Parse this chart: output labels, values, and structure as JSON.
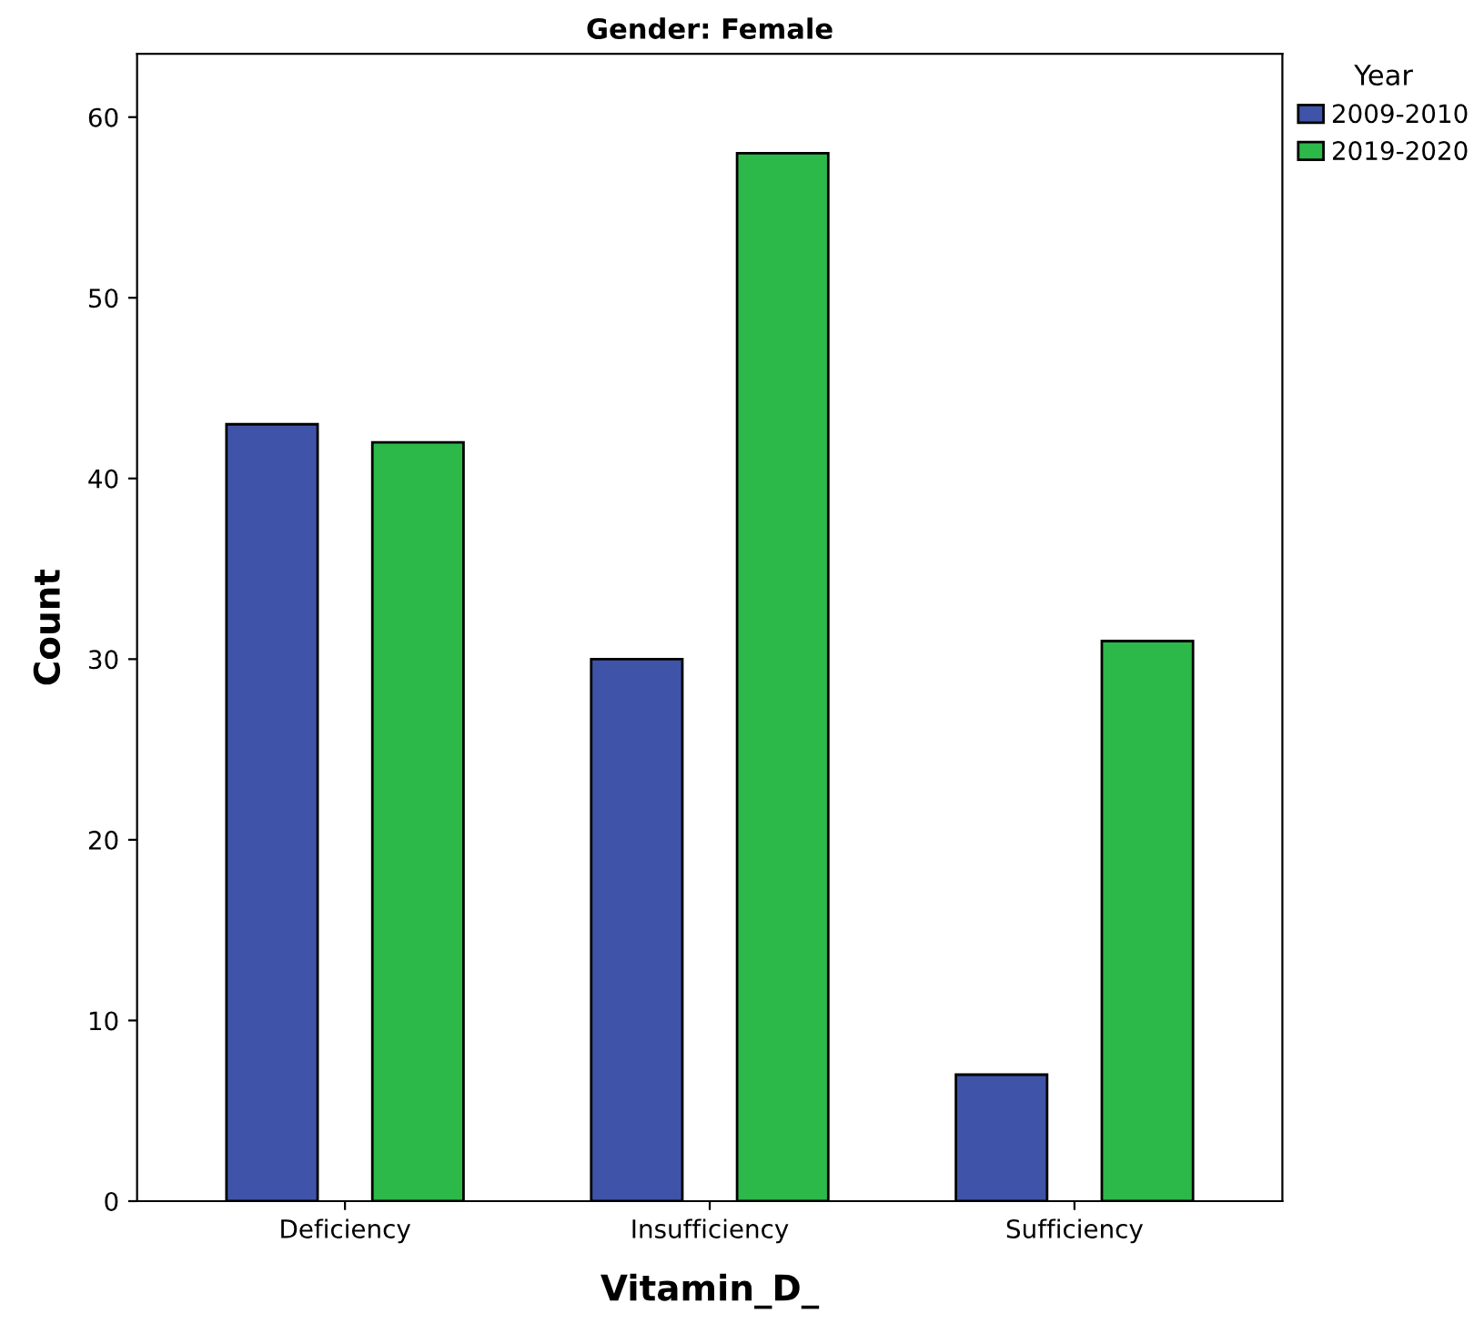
{
  "chart_data": {
    "type": "bar",
    "title": "Gender: Female",
    "xlabel": "Vitamin_D_",
    "ylabel": "Count",
    "legend_title": "Year",
    "categories": [
      "Deficiency",
      "Insufficiency",
      "Sufficiency"
    ],
    "series": [
      {
        "name": "2009-2010",
        "color": "#3f54a8",
        "values": [
          43,
          30,
          7
        ]
      },
      {
        "name": "2019-2020",
        "color": "#2db84a",
        "values": [
          42,
          58,
          31
        ]
      }
    ],
    "ylim": [
      0,
      63.5
    ],
    "yticks": [
      0,
      10,
      20,
      30,
      40,
      50,
      60
    ],
    "grid": false,
    "legend": "top right"
  }
}
